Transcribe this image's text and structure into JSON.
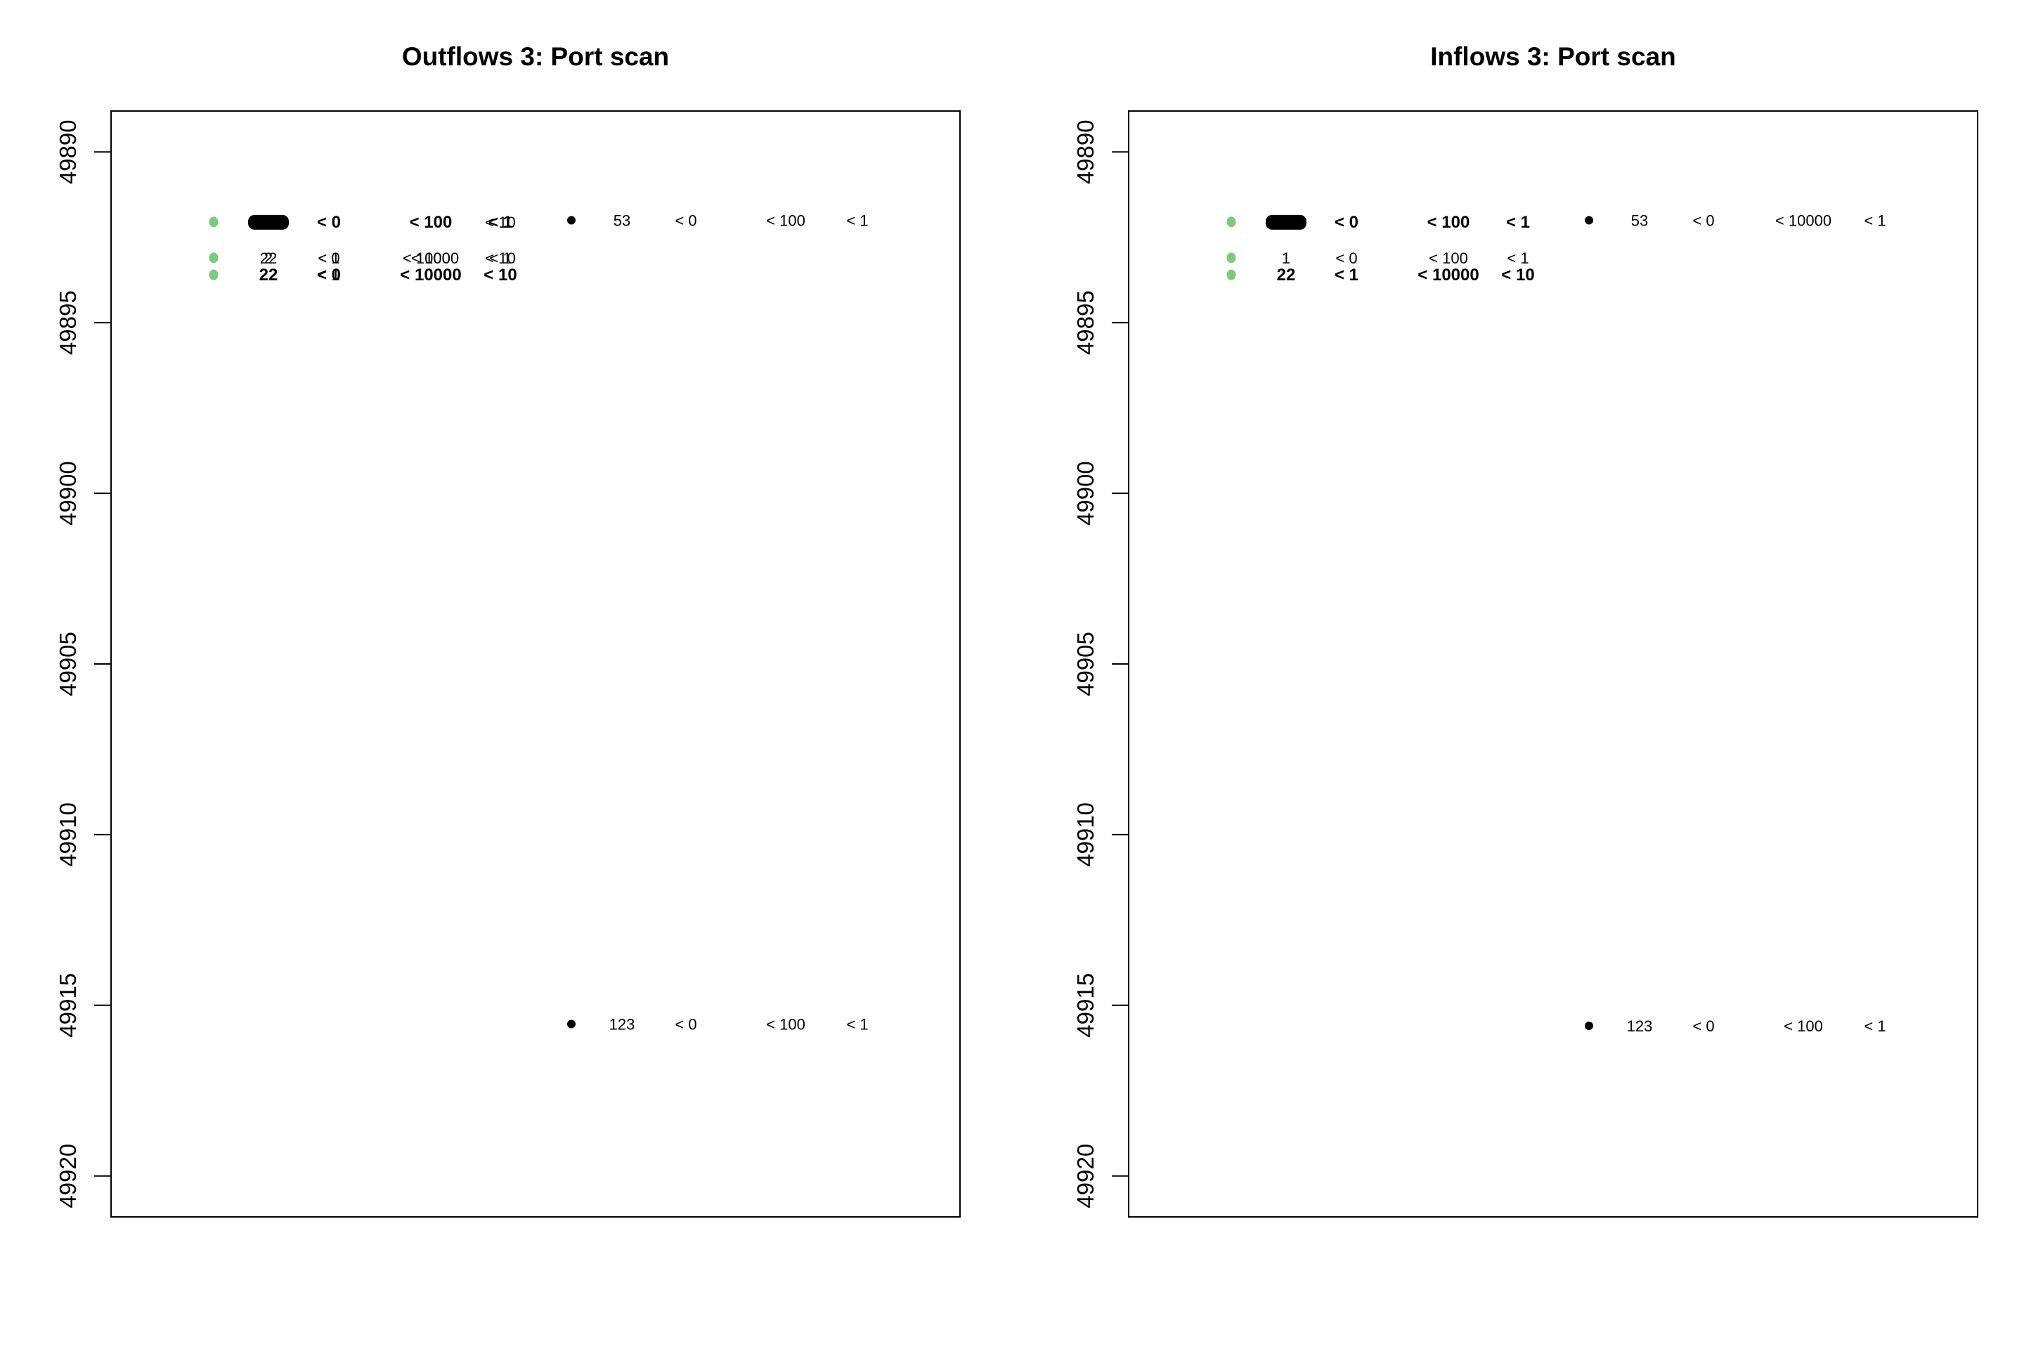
{
  "chart_data": [
    {
      "type": "scatter",
      "title": "Outflows 3: Port scan",
      "xlabel": "",
      "ylabel": "",
      "ylim": [
        49921.2,
        49888.8
      ],
      "yticks": [
        49890,
        49895,
        49900,
        49905,
        49910,
        49915,
        49920
      ],
      "ytick_labels": [
        "49890",
        "49895",
        "49900",
        "49905",
        "49910",
        "49915",
        "49920"
      ],
      "grid": false,
      "colors": {
        "green": "#7fc97f",
        "black": "#000000",
        "red": "#8b0000"
      },
      "points": [
        {
          "y": 49892.05,
          "color": "green",
          "pos": 0
        },
        {
          "y": 49893.1,
          "color": "green",
          "pos": 0
        },
        {
          "y": 49893.6,
          "color": "green",
          "pos": 0
        },
        {
          "y": 49892.0,
          "color": "black",
          "pos": 1
        },
        {
          "y": 49915.55,
          "color": "black",
          "pos": 1
        }
      ],
      "rows": [
        {
          "y": 49892.05,
          "group": 0,
          "bold": true,
          "labels": [
            {
              "text": "",
              "color": "black",
              "blob": true
            },
            {
              "text": "< 0",
              "color": "black"
            },
            {
              "text": "< 100",
              "color": "black"
            },
            {
              "text": "< 1",
              "color": "black"
            }
          ]
        },
        {
          "y": 49892.05,
          "group": 0,
          "bold": false,
          "labels": [
            {
              "text": "",
              "color": "black"
            },
            {
              "text": "",
              "color": "black"
            },
            {
              "text": "",
              "color": "black"
            },
            {
              "text": "< 10",
              "color": "black"
            }
          ]
        },
        {
          "y": 49893.1,
          "group": 0,
          "bold": false,
          "labels": [
            {
              "text": "22",
              "color": "black"
            },
            {
              "text": "< 0",
              "color": "black"
            },
            {
              "text": "< 10000",
              "color": "red"
            },
            {
              "text": "< 10",
              "color": "black"
            }
          ]
        },
        {
          "y": 49893.1,
          "group": 0,
          "bold": false,
          "labels": [
            {
              "text": "2",
              "color": "black"
            },
            {
              "text": "< 1",
              "color": "black"
            },
            {
              "text": "< 100",
              "color": "black"
            },
            {
              "text": "< 1",
              "color": "black"
            }
          ]
        },
        {
          "y": 49893.6,
          "group": 0,
          "bold": true,
          "labels": [
            {
              "text": "22",
              "color": "black"
            },
            {
              "text": "< 0",
              "color": "black"
            },
            {
              "text": "< 10000",
              "color": "red"
            },
            {
              "text": "< 10",
              "color": "black"
            }
          ]
        },
        {
          "y": 49893.6,
          "group": 0,
          "bold": false,
          "labels": [
            {
              "text": "",
              "color": "black"
            },
            {
              "text": "< 1",
              "color": "black"
            },
            {
              "text": "",
              "color": "black"
            },
            {
              "text": "",
              "color": "black"
            }
          ]
        },
        {
          "y": 49892.0,
          "group": 1,
          "bold": false,
          "labels": [
            {
              "text": "53",
              "color": "black"
            },
            {
              "text": "< 0",
              "color": "black"
            },
            {
              "text": "< 100",
              "color": "black"
            },
            {
              "text": "< 1",
              "color": "black"
            }
          ]
        },
        {
          "y": 49915.55,
          "group": 1,
          "bold": false,
          "labels": [
            {
              "text": "123",
              "color": "black"
            },
            {
              "text": "< 0",
              "color": "black"
            },
            {
              "text": "< 100",
              "color": "black"
            },
            {
              "text": "< 1",
              "color": "black"
            }
          ]
        }
      ]
    },
    {
      "type": "scatter",
      "title": "Inflows 3: Port scan",
      "xlabel": "",
      "ylabel": "",
      "ylim": [
        49921.2,
        49888.8
      ],
      "yticks": [
        49890,
        49895,
        49900,
        49905,
        49910,
        49915,
        49920
      ],
      "ytick_labels": [
        "49890",
        "49895",
        "49900",
        "49905",
        "49910",
        "49915",
        "49920"
      ],
      "grid": false,
      "colors": {
        "green": "#7fc97f",
        "black": "#000000",
        "red": "#8b0000"
      },
      "points": [
        {
          "y": 49892.05,
          "color": "green",
          "pos": 0
        },
        {
          "y": 49893.1,
          "color": "green",
          "pos": 0
        },
        {
          "y": 49893.6,
          "color": "green",
          "pos": 0
        },
        {
          "y": 49892.0,
          "color": "black",
          "pos": 1
        },
        {
          "y": 49915.6,
          "color": "black",
          "pos": 1
        }
      ],
      "rows": [
        {
          "y": 49892.05,
          "group": 0,
          "bold": true,
          "labels": [
            {
              "text": "",
              "color": "black",
              "blob": true
            },
            {
              "text": "< 0",
              "color": "black"
            },
            {
              "text": "< 100",
              "color": "black"
            },
            {
              "text": "< 1",
              "color": "black"
            }
          ]
        },
        {
          "y": 49893.1,
          "group": 0,
          "bold": false,
          "labels": [
            {
              "text": "1",
              "color": "black"
            },
            {
              "text": "< 0",
              "color": "black"
            },
            {
              "text": "< 100",
              "color": "black"
            },
            {
              "text": "< 1",
              "color": "black"
            }
          ]
        },
        {
          "y": 49893.6,
          "group": 0,
          "bold": true,
          "labels": [
            {
              "text": "22",
              "color": "black"
            },
            {
              "text": "< 1",
              "color": "black"
            },
            {
              "text": "< 10000",
              "color": "red"
            },
            {
              "text": "< 10",
              "color": "black"
            }
          ]
        },
        {
          "y": 49892.0,
          "group": 1,
          "bold": false,
          "labels": [
            {
              "text": "53",
              "color": "black"
            },
            {
              "text": "< 0",
              "color": "black"
            },
            {
              "text": "< 10000",
              "color": "red"
            },
            {
              "text": "< 1",
              "color": "black"
            }
          ]
        },
        {
          "y": 49915.6,
          "group": 1,
          "bold": false,
          "labels": [
            {
              "text": "123",
              "color": "black"
            },
            {
              "text": "< 0",
              "color": "black"
            },
            {
              "text": "< 100",
              "color": "black"
            },
            {
              "text": "< 1",
              "color": "black"
            }
          ]
        }
      ]
    }
  ]
}
